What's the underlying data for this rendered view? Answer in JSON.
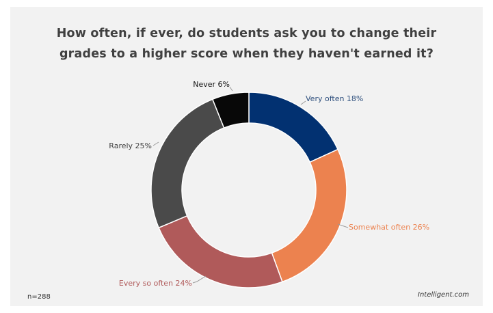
{
  "chart_data": {
    "type": "pie",
    "donut": true,
    "title_lines": [
      "How often, if ever, do students ask you to change their",
      "grades to a higher score when they haven't earned it?"
    ],
    "slices": [
      {
        "label": "Very often",
        "value": 18,
        "value_text": "18%",
        "color": "#023171"
      },
      {
        "label": "Somewhat often",
        "value": 26,
        "value_text": "26%",
        "color": "#ec824f"
      },
      {
        "label": "Every so often",
        "value": 24,
        "value_text": "24%",
        "color": "#b05a5a"
      },
      {
        "label": "Rarely",
        "value": 25,
        "value_text": "25%",
        "color": "#4a4a4a"
      },
      {
        "label": "Never",
        "value": 6,
        "value_text": "6%",
        "color": "#080808"
      }
    ],
    "label_colors": [
      "#2e4f7d",
      "#ec824f",
      "#b05a5a",
      "#404040",
      "#111111"
    ]
  },
  "footer": {
    "sample": "n=288",
    "source": "Intelligent.com"
  }
}
